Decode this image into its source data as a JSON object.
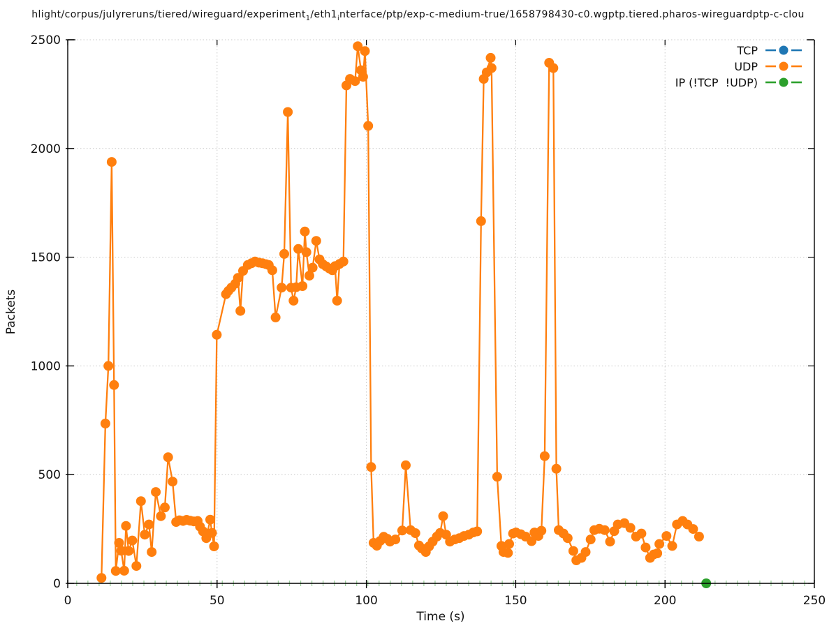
{
  "title": {
    "part1": "hlight/corpus/julyreruns/tiered/wireguard/experiment",
    "sub1": "1",
    "part2": "/eth1",
    "sub2": "i",
    "part3": "nterface/ptp/exp-c-medium-true/1658798430-c0.wgptp.tiered.pharos-wireguardptp-c-clou"
  },
  "chart_data": {
    "type": "line",
    "title": "hlight/corpus/julyreruns/tiered/wireguard/experiment_1/eth1_interface/ptp/exp-c-medium-true/1658798430-c0.wgptp.tiered.pharos-wireguardptp-c-clou",
    "xlabel": "Time (s)",
    "ylabel": "Packets",
    "xlim": [
      0,
      250
    ],
    "ylim": [
      0,
      2500
    ],
    "xticks": [
      0,
      50,
      100,
      150,
      200,
      250
    ],
    "yticks": [
      0,
      500,
      1000,
      1500,
      2000,
      2500
    ],
    "grid": "dotted",
    "legend_position": "upper right inside, no frame, marker right of label",
    "colors": {
      "grid": "#c8c8c8",
      "axis": "#000000",
      "ip_zero_marks": "#9fd29f",
      "background": "#ffffff"
    },
    "series": [
      {
        "name": "TCP",
        "color": "#1f77b4",
        "marker": "circle",
        "points": []
      },
      {
        "name": "UDP",
        "color": "#ff7f0e",
        "marker": "circle",
        "points": [
          [
            11.3,
            25
          ],
          [
            12.6,
            735
          ],
          [
            13.6,
            1000
          ],
          [
            14.7,
            1938
          ],
          [
            15.5,
            912
          ],
          [
            16.1,
            57
          ],
          [
            17.2,
            186
          ],
          [
            17.9,
            150
          ],
          [
            18.9,
            58
          ],
          [
            19.5,
            264
          ],
          [
            20.4,
            149
          ],
          [
            21.6,
            197
          ],
          [
            23.0,
            80
          ],
          [
            24.5,
            378
          ],
          [
            25.8,
            224
          ],
          [
            27.2,
            271
          ],
          [
            28.1,
            144
          ],
          [
            29.5,
            420
          ],
          [
            31.2,
            309
          ],
          [
            32.5,
            349
          ],
          [
            33.6,
            580
          ],
          [
            35.1,
            468
          ],
          [
            36.3,
            282
          ],
          [
            37.4,
            290
          ],
          [
            38.6,
            287
          ],
          [
            39.8,
            292
          ],
          [
            41.0,
            288
          ],
          [
            42.2,
            285
          ],
          [
            43.5,
            287
          ],
          [
            44.3,
            261
          ],
          [
            45.3,
            239
          ],
          [
            46.4,
            208
          ],
          [
            47.7,
            293
          ],
          [
            48.3,
            232
          ],
          [
            49.0,
            170
          ],
          [
            49.9,
            1143
          ],
          [
            53.0,
            1330
          ],
          [
            53.8,
            1345
          ],
          [
            54.8,
            1360
          ],
          [
            56.1,
            1378
          ],
          [
            57.0,
            1405
          ],
          [
            57.8,
            1253
          ],
          [
            58.7,
            1437
          ],
          [
            60.3,
            1464
          ],
          [
            61.5,
            1472
          ],
          [
            62.7,
            1480
          ],
          [
            64.0,
            1475
          ],
          [
            65.2,
            1472
          ],
          [
            66.4,
            1468
          ],
          [
            67.3,
            1464
          ],
          [
            68.5,
            1440
          ],
          [
            69.6,
            1223
          ],
          [
            71.6,
            1360
          ],
          [
            72.5,
            1515
          ],
          [
            73.7,
            2168
          ],
          [
            74.8,
            1360
          ],
          [
            75.6,
            1300
          ],
          [
            76.5,
            1362
          ],
          [
            77.2,
            1538
          ],
          [
            78.6,
            1367
          ],
          [
            79.4,
            1618
          ],
          [
            79.9,
            1523
          ],
          [
            80.9,
            1415
          ],
          [
            82.0,
            1452
          ],
          [
            83.2,
            1575
          ],
          [
            84.3,
            1490
          ],
          [
            85.4,
            1468
          ],
          [
            86.5,
            1458
          ],
          [
            87.6,
            1448
          ],
          [
            88.6,
            1440
          ],
          [
            89.5,
            1459
          ],
          [
            90.2,
            1300
          ],
          [
            91.0,
            1469
          ],
          [
            92.3,
            1480
          ],
          [
            93.3,
            2290
          ],
          [
            94.5,
            2320
          ],
          [
            96.2,
            2310
          ],
          [
            97.1,
            2470
          ],
          [
            98.2,
            2360
          ],
          [
            98.9,
            2330
          ],
          [
            99.5,
            2448
          ],
          [
            100.6,
            2104
          ],
          [
            101.6,
            535
          ],
          [
            102.4,
            186
          ],
          [
            103.5,
            173
          ],
          [
            104.6,
            195
          ],
          [
            105.8,
            214
          ],
          [
            107.0,
            205
          ],
          [
            107.9,
            192
          ],
          [
            109.7,
            202
          ],
          [
            112.0,
            243
          ],
          [
            113.2,
            543
          ],
          [
            114.8,
            245
          ],
          [
            116.4,
            231
          ],
          [
            117.6,
            174
          ],
          [
            118.6,
            160
          ],
          [
            119.9,
            144
          ],
          [
            121.0,
            170
          ],
          [
            122.2,
            192
          ],
          [
            123.6,
            215
          ],
          [
            124.7,
            232
          ],
          [
            125.7,
            309
          ],
          [
            126.7,
            224
          ],
          [
            128.0,
            192
          ],
          [
            129.6,
            202
          ],
          [
            131.1,
            208
          ],
          [
            132.7,
            218
          ],
          [
            134.3,
            224
          ],
          [
            135.8,
            234
          ],
          [
            137.1,
            239
          ],
          [
            138.4,
            1666
          ],
          [
            139.3,
            2320
          ],
          [
            140.3,
            2350
          ],
          [
            141.6,
            2417
          ],
          [
            141.9,
            2370
          ],
          [
            143.8,
            490
          ],
          [
            145.2,
            172
          ],
          [
            145.9,
            144
          ],
          [
            147.4,
            140
          ],
          [
            147.8,
            181
          ],
          [
            149.1,
            229
          ],
          [
            150.1,
            234
          ],
          [
            151.7,
            226
          ],
          [
            153.3,
            215
          ],
          [
            155.3,
            194
          ],
          [
            156.3,
            234
          ],
          [
            157.6,
            218
          ],
          [
            158.6,
            242
          ],
          [
            159.7,
            585
          ],
          [
            161.2,
            2394
          ],
          [
            162.6,
            2370
          ],
          [
            163.6,
            527
          ],
          [
            164.4,
            245
          ],
          [
            166.0,
            229
          ],
          [
            167.4,
            208
          ],
          [
            169.3,
            149
          ],
          [
            170.3,
            106
          ],
          [
            172.0,
            117
          ],
          [
            173.4,
            144
          ],
          [
            175.1,
            202
          ],
          [
            176.3,
            245
          ],
          [
            178.0,
            251
          ],
          [
            179.8,
            245
          ],
          [
            181.6,
            192
          ],
          [
            183.0,
            240
          ],
          [
            184.2,
            271
          ],
          [
            186.4,
            277
          ],
          [
            188.4,
            255
          ],
          [
            190.3,
            215
          ],
          [
            192.1,
            229
          ],
          [
            193.5,
            165
          ],
          [
            195.0,
            117
          ],
          [
            196.2,
            133
          ],
          [
            197.4,
            138
          ],
          [
            198.1,
            181
          ],
          [
            200.5,
            218
          ],
          [
            202.4,
            172
          ],
          [
            204.0,
            271
          ],
          [
            205.9,
            287
          ],
          [
            207.5,
            271
          ],
          [
            209.4,
            250
          ],
          [
            211.4,
            215
          ]
        ]
      },
      {
        "name": "IP (!TCP  !UDP)",
        "color": "#2ca02c",
        "marker": "circle",
        "points": [
          [
            213.8,
            0
          ]
        ]
      }
    ],
    "ip_zero_axis_marks": {
      "t_start": 3,
      "t_end": 248,
      "t_step": 3.75,
      "value": 0
    }
  }
}
